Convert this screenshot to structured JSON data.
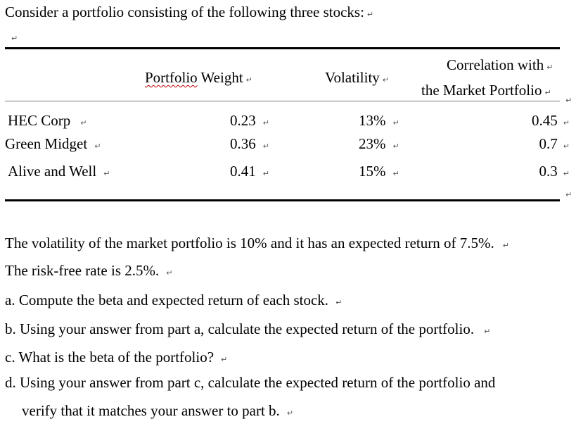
{
  "intro": "Consider a portfolio consisting of the following three stocks:",
  "table": {
    "headers": {
      "weight_a": "Portfolio",
      "weight_b": " Weight",
      "volatility": "Volatility",
      "corr_line1": "Correlation with",
      "corr_line2": "the Market Portfolio"
    },
    "rows": [
      {
        "name": "HEC Corp",
        "weight": "0.23",
        "volatility": "13%",
        "correlation": "0.45"
      },
      {
        "name": "Green Midget",
        "weight": "0.36",
        "volatility": "23%",
        "correlation": "0.7"
      },
      {
        "name": "Alive and Well",
        "weight": "0.41",
        "volatility": "15%",
        "correlation": "0.3"
      }
    ]
  },
  "paragraph1": "The volatility of the market portfolio is 10% and it has an expected return of 7.5%.",
  "paragraph2": "The risk-free rate is 2.5%.",
  "questions": [
    "a. Compute the beta and expected return of each stock.",
    "b. Using your answer from part a, calculate the expected return of the portfolio.",
    "c. What is the beta of the portfolio?",
    "d. Using your answer from part c, calculate the expected return of the portfolio and",
    "verify that it matches your answer to part b."
  ],
  "icons": {
    "paragraph_mark": "return-arrow-icon"
  }
}
